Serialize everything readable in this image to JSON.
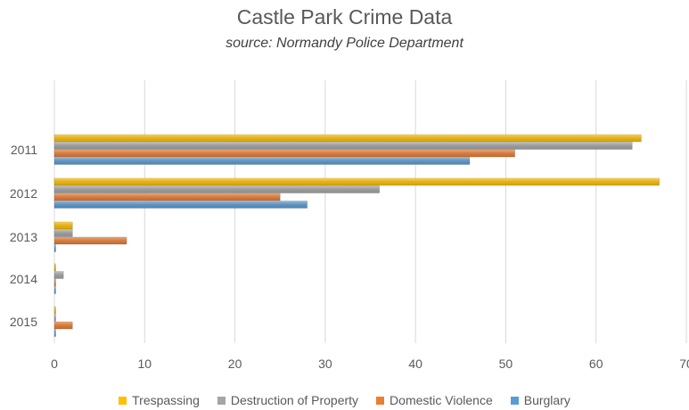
{
  "chart_data": {
    "type": "bar",
    "orientation": "horizontal",
    "title": "Castle Park Crime Data",
    "subtitle": "source: Normandy Police Department",
    "categories": [
      "2011",
      "2012",
      "2013",
      "2014",
      "2015"
    ],
    "series": [
      {
        "name": "Trespassing",
        "color": "#FFC000",
        "values": [
          65,
          67,
          2,
          0,
          0
        ]
      },
      {
        "name": "Destruction of Property",
        "color": "#A5A5A5",
        "values": [
          64,
          36,
          2,
          1,
          0
        ]
      },
      {
        "name": "Domestic Violence",
        "color": "#ED7D31",
        "values": [
          51,
          25,
          8,
          0,
          2
        ]
      },
      {
        "name": "Burglary",
        "color": "#5B9BD5",
        "values": [
          46,
          28,
          0,
          0,
          0
        ]
      }
    ],
    "xlim": [
      0,
      70
    ],
    "xticks": [
      "0",
      "10",
      "20",
      "30",
      "40",
      "50",
      "60",
      "70"
    ],
    "grid": true,
    "legend_position": "bottom"
  }
}
